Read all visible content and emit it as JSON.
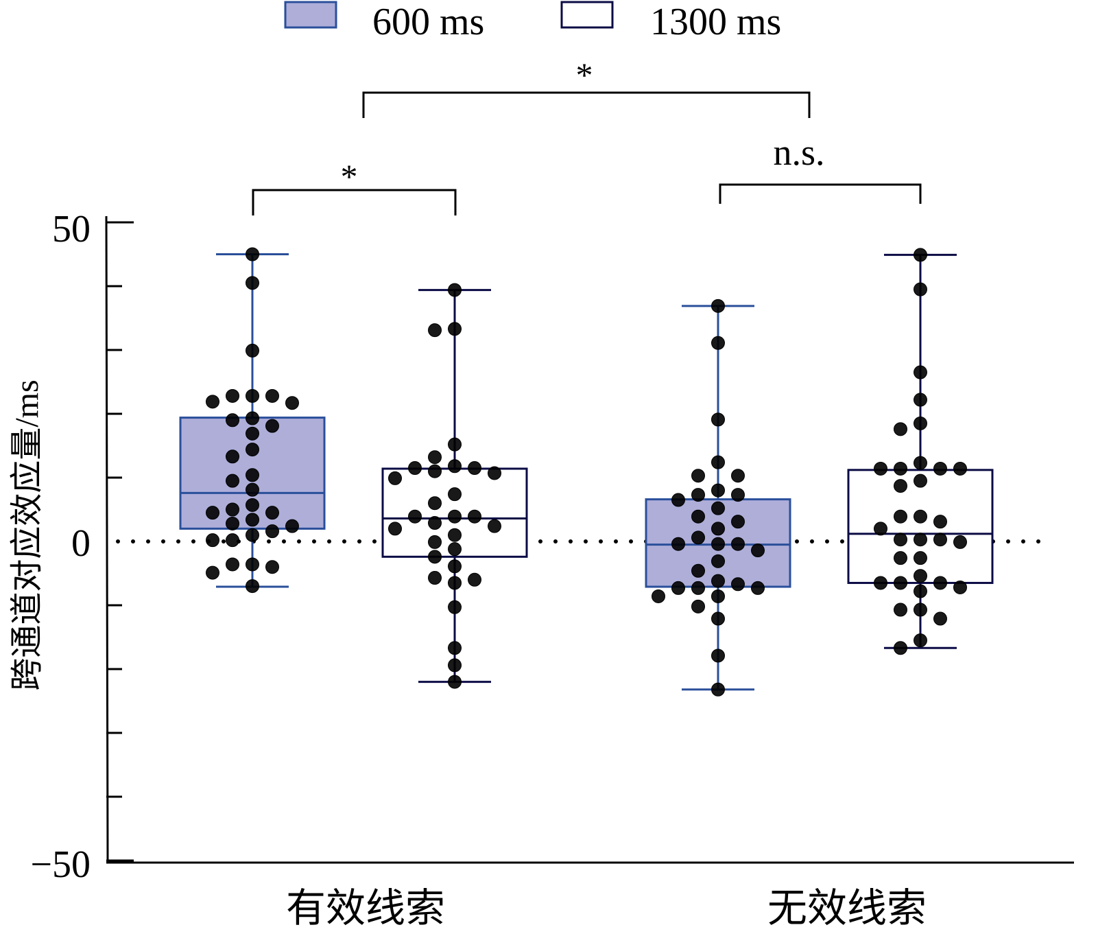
{
  "chart_data": {
    "type": "box",
    "title": "",
    "ylabel": "跨通道对应效应量/ms",
    "xlabel": "",
    "ylim": [
      -50,
      50
    ],
    "yticks": [
      -50,
      -40,
      -30,
      -20,
      -10,
      0,
      10,
      20,
      30,
      40,
      50
    ],
    "ytick_labels": [
      "50",
      "0",
      "−50"
    ],
    "reference_line": 0,
    "categories": [
      "有效线索",
      "无效线索"
    ],
    "legend": {
      "position": "top",
      "entries": [
        "600 ms",
        "1300 ms"
      ]
    },
    "colors": {
      "fill_600": "#aeaed9",
      "stroke_600": "#2a4f9a",
      "stroke_1300": "#0b0b45",
      "point": "#000000"
    },
    "series": [
      {
        "name": "600 ms",
        "boxes": [
          {
            "category": "有效线索",
            "min": -7.1,
            "q1": 2.0,
            "median": 7.6,
            "q3": 19.4,
            "max": 45.0,
            "points": [
              45.0,
              40.5,
              29.9,
              22.8,
              22.8,
              22.8,
              21.9,
              21.7,
              19.3,
              19.0,
              18.1,
              16.9,
              14.4,
              13.3,
              10.4,
              9.5,
              8.1,
              5.7,
              5.0,
              4.5,
              4.5,
              3.4,
              2.8,
              2.4,
              1.6,
              1.0,
              0.2,
              0.2,
              -3.6,
              -3.6,
              -4.0,
              -4.9,
              -7.0
            ]
          },
          {
            "category": "无效线索",
            "min": -23.2,
            "q1": -7.1,
            "median": -0.5,
            "q3": 6.6,
            "max": 36.9,
            "points": [
              36.9,
              31.1,
              19.1,
              12.4,
              10.3,
              10.3,
              8.0,
              7.3,
              7.3,
              6.5,
              5.2,
              3.9,
              3.1,
              2.0,
              0.6,
              -0.4,
              -0.4,
              -0.4,
              -1.4,
              -3.1,
              -4.6,
              -6.2,
              -6.7,
              -7.3,
              -7.3,
              -7.3,
              -8.6,
              -8.6,
              -10.2,
              -12.1,
              -17.9,
              -23.2
            ]
          }
        ]
      },
      {
        "name": "1300 ms",
        "boxes": [
          {
            "category": "有效线索",
            "min": -22.0,
            "q1": -2.4,
            "median": 3.6,
            "q3": 11.4,
            "max": 39.4,
            "points": [
              39.4,
              33.3,
              33.1,
              15.2,
              13.2,
              11.8,
              11.5,
              11.5,
              11.0,
              10.7,
              9.9,
              7.4,
              6.0,
              3.9,
              3.9,
              3.9,
              2.9,
              2.4,
              2.0,
              1.0,
              -0.1,
              -1.2,
              -2.4,
              -3.9,
              -5.7,
              -6.0,
              -6.5,
              -10.3,
              -16.7,
              -19.4,
              -22.0
            ]
          },
          {
            "category": "无效线索",
            "min": -16.7,
            "q1": -6.5,
            "median": 1.2,
            "q3": 11.2,
            "max": 44.9,
            "points": [
              44.9,
              39.5,
              26.5,
              22.2,
              18.5,
              17.6,
              12.3,
              11.4,
              11.4,
              11.4,
              11.4,
              9.5,
              8.7,
              3.9,
              3.9,
              3.1,
              2.0,
              0.3,
              0.3,
              0.3,
              -0.1,
              -2.6,
              -2.6,
              -5.4,
              -6.5,
              -6.5,
              -6.5,
              -7.2,
              -7.8,
              -10.7,
              -10.7,
              -12.1,
              -15.5,
              -16.7
            ]
          }
        ]
      }
    ],
    "significance": [
      {
        "label": "*",
        "between": [
          "有效线索 600 ms",
          "有效线索 1300 ms"
        ]
      },
      {
        "label": "n.s.",
        "between": [
          "无效线索 600 ms",
          "无效线索 1300 ms"
        ]
      },
      {
        "label": "*",
        "between": [
          "有效线索",
          "无效线索"
        ]
      }
    ]
  }
}
